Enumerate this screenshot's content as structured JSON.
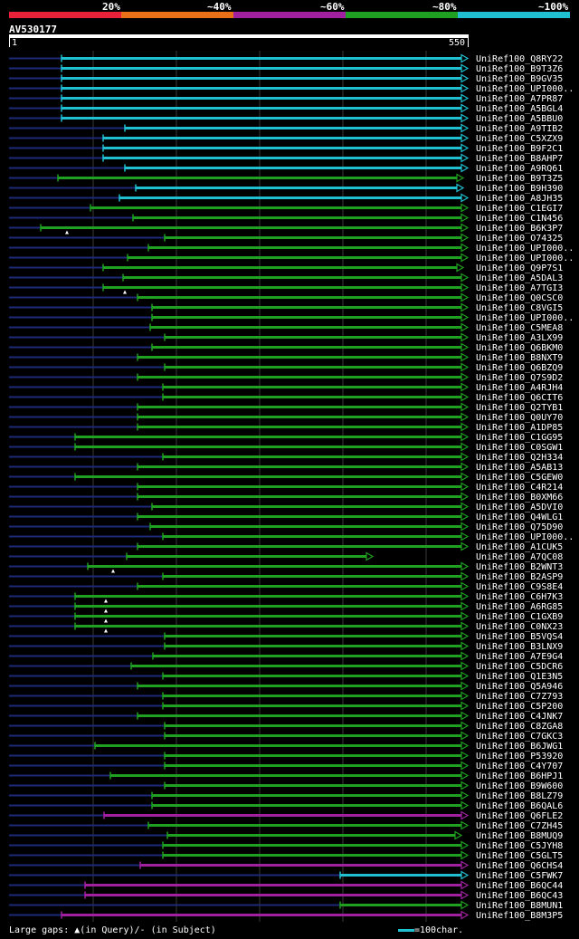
{
  "legend": {
    "labels": [
      "20%",
      "~40%",
      "~60%",
      "~80%",
      "~100%"
    ],
    "colors": [
      "#e8203a",
      "#e87018",
      "#a020a0",
      "#20a020",
      "#20c0d0"
    ]
  },
  "query": {
    "name": "AV530177",
    "start_label": "1",
    "end_label": "550",
    "length": 550
  },
  "footer": {
    "gaps_label": "Large gaps:",
    "in_query": "(in Query)/",
    "in_subject": "- (in Subject)",
    "scale_label": "=100char."
  },
  "hits": [
    {
      "name": "UniRef100_Q8RY22",
      "c": "cyan",
      "s": 68
    },
    {
      "name": "UniRef100_B9T3Z6",
      "c": "cyan",
      "s": 68
    },
    {
      "name": "UniRef100_B9GV35",
      "c": "cyan",
      "s": 68
    },
    {
      "name": "UniRef100_UPI000..",
      "c": "cyan",
      "s": 68
    },
    {
      "name": "UniRef100_A7PR87",
      "c": "cyan",
      "s": 68
    },
    {
      "name": "UniRef100_A5BGL4",
      "c": "cyan",
      "s": 68
    },
    {
      "name": "UniRef100_A5BBU0",
      "c": "cyan",
      "s": 68
    },
    {
      "name": "UniRef100_A9TIB2",
      "c": "cyan",
      "s": 138
    },
    {
      "name": "UniRef100_C5XZX9",
      "c": "cyan",
      "s": 114
    },
    {
      "name": "UniRef100_B9F2C1",
      "c": "cyan",
      "s": 114
    },
    {
      "name": "UniRef100_B8AHP7",
      "c": "cyan",
      "s": 114
    },
    {
      "name": "UniRef100_A9RQ61",
      "c": "cyan",
      "s": 138
    },
    {
      "name": "UniRef100_B9T3Z5",
      "c": "green",
      "s": 64,
      "e": 510
    },
    {
      "name": "UniRef100_B9H390",
      "c": "cyan",
      "s": 150,
      "e": 510
    },
    {
      "name": "UniRef100_A8JH35",
      "c": "cyan",
      "s": 132
    },
    {
      "name": "UniRef100_C1EGI7",
      "c": "green",
      "s": 100
    },
    {
      "name": "UniRef100_C1N456",
      "c": "green",
      "s": 147
    },
    {
      "name": "UniRef100_B6K3P7",
      "c": "green",
      "s": 45,
      "tri": 74
    },
    {
      "name": "UniRef100_O74325",
      "c": "green",
      "s": 182
    },
    {
      "name": "UniRef100_UPI000..",
      "c": "green",
      "s": 164
    },
    {
      "name": "UniRef100_UPI000..",
      "c": "green",
      "s": 141
    },
    {
      "name": "UniRef100_Q9P7S1",
      "c": "green",
      "s": 114,
      "e": 510
    },
    {
      "name": "UniRef100_A5DAL3",
      "c": "green",
      "s": 136
    },
    {
      "name": "UniRef100_A7TGI3",
      "c": "green",
      "s": 114,
      "tri": 138
    },
    {
      "name": "UniRef100_Q0CSC0",
      "c": "green",
      "s": 152
    },
    {
      "name": "UniRef100_C8VGI5",
      "c": "green",
      "s": 168
    },
    {
      "name": "UniRef100_UPI000..",
      "c": "green",
      "s": 168
    },
    {
      "name": "UniRef100_C5MEA8",
      "c": "green",
      "s": 166
    },
    {
      "name": "UniRef100_A3LX99",
      "c": "green",
      "s": 182
    },
    {
      "name": "UniRef100_Q6BKM0",
      "c": "green",
      "s": 168
    },
    {
      "name": "UniRef100_B8NXT9",
      "c": "green",
      "s": 152
    },
    {
      "name": "UniRef100_Q6BZQ9",
      "c": "green",
      "s": 182
    },
    {
      "name": "UniRef100_Q7S9D2",
      "c": "green",
      "s": 152
    },
    {
      "name": "UniRef100_A4RJH4",
      "c": "green",
      "s": 180
    },
    {
      "name": "UniRef100_Q6CIT6",
      "c": "green",
      "s": 180
    },
    {
      "name": "UniRef100_Q2TYB1",
      "c": "green",
      "s": 152
    },
    {
      "name": "UniRef100_Q0UY70",
      "c": "green",
      "s": 152
    },
    {
      "name": "UniRef100_A1DP85",
      "c": "green",
      "s": 152
    },
    {
      "name": "UniRef100_C1GG95",
      "c": "green",
      "s": 83
    },
    {
      "name": "UniRef100_C0SGW1",
      "c": "green",
      "s": 83
    },
    {
      "name": "UniRef100_Q2H334",
      "c": "green",
      "s": 180
    },
    {
      "name": "UniRef100_A5AB13",
      "c": "green",
      "s": 152
    },
    {
      "name": "UniRef100_C5GEW0",
      "c": "green",
      "s": 83
    },
    {
      "name": "UniRef100_C4R214",
      "c": "green",
      "s": 152
    },
    {
      "name": "UniRef100_B0XM66",
      "c": "green",
      "s": 152
    },
    {
      "name": "UniRef100_A5DVI0",
      "c": "green",
      "s": 168
    },
    {
      "name": "UniRef100_Q4WLG1",
      "c": "green",
      "s": 152
    },
    {
      "name": "UniRef100_Q75D90",
      "c": "green",
      "s": 166
    },
    {
      "name": "UniRef100_UPI000..",
      "c": "green",
      "s": 180
    },
    {
      "name": "UniRef100_A1CUK5",
      "c": "green",
      "s": 152
    },
    {
      "name": "UniRef100_A7QC08",
      "c": "green",
      "s": 140,
      "e": 410
    },
    {
      "name": "UniRef100_B2WNT3",
      "c": "green",
      "s": 97,
      "tri": 125
    },
    {
      "name": "UniRef100_B2ASP9",
      "c": "green",
      "s": 180
    },
    {
      "name": "UniRef100_C9S8E4",
      "c": "green",
      "s": 152
    },
    {
      "name": "UniRef100_C6H7K3",
      "c": "green",
      "s": 83,
      "tri": 117
    },
    {
      "name": "UniRef100_A6RG85",
      "c": "green",
      "s": 83,
      "tri": 117
    },
    {
      "name": "UniRef100_C1GXB9",
      "c": "green",
      "s": 83,
      "tri": 117
    },
    {
      "name": "UniRef100_C0NX23",
      "c": "green",
      "s": 83,
      "tri": 117
    },
    {
      "name": "UniRef100_B5VQS4",
      "c": "green",
      "s": 182
    },
    {
      "name": "UniRef100_B3LNX9",
      "c": "green",
      "s": 182
    },
    {
      "name": "UniRef100_A7E9G4",
      "c": "green",
      "s": 169
    },
    {
      "name": "UniRef100_C5DCR6",
      "c": "green",
      "s": 145
    },
    {
      "name": "UniRef100_Q1E3N5",
      "c": "green",
      "s": 180
    },
    {
      "name": "UniRef100_Q5A946",
      "c": "green",
      "s": 152
    },
    {
      "name": "UniRef100_C7Z793",
      "c": "green",
      "s": 180
    },
    {
      "name": "UniRef100_C5P200",
      "c": "green",
      "s": 180
    },
    {
      "name": "UniRef100_C4JNK7",
      "c": "green",
      "s": 152
    },
    {
      "name": "UniRef100_C8ZGA8",
      "c": "green",
      "s": 182
    },
    {
      "name": "UniRef100_C7GKC3",
      "c": "green",
      "s": 182
    },
    {
      "name": "UniRef100_B6JWG1",
      "c": "green",
      "s": 105
    },
    {
      "name": "UniRef100_P53920",
      "c": "green",
      "s": 182
    },
    {
      "name": "UniRef100_C4Y707",
      "c": "green",
      "s": 182
    },
    {
      "name": "UniRef100_B6HPJ1",
      "c": "green",
      "s": 122
    },
    {
      "name": "UniRef100_B9W600",
      "c": "green",
      "s": 182
    },
    {
      "name": "UniRef100_B8LZ79",
      "c": "green",
      "s": 168
    },
    {
      "name": "UniRef100_B6QAL6",
      "c": "green",
      "s": 168
    },
    {
      "name": "UniRef100_Q6FLE2",
      "c": "purple",
      "s": 115
    },
    {
      "name": "UniRef100_C7ZH45",
      "c": "green",
      "s": 164
    },
    {
      "name": "UniRef100_B8MUQ9",
      "c": "green",
      "s": 185,
      "e": 508
    },
    {
      "name": "UniRef100_C5JYH8",
      "c": "green",
      "s": 180
    },
    {
      "name": "UniRef100_C5GLT5",
      "c": "green",
      "s": 180
    },
    {
      "name": "UniRef100_Q6CHS4",
      "c": "purple",
      "s": 155
    },
    {
      "name": "UniRef100_C5FWK7",
      "c": "cyan",
      "s": 376
    },
    {
      "name": "UniRef100_B6QC44",
      "c": "purple",
      "s": 94
    },
    {
      "name": "UniRef100_B6QC43",
      "c": "purple",
      "s": 94
    },
    {
      "name": "UniRef100_B8MUN1",
      "c": "green",
      "s": 376
    },
    {
      "name": "UniRef100_B8M3P5",
      "c": "purple",
      "s": 68
    }
  ]
}
